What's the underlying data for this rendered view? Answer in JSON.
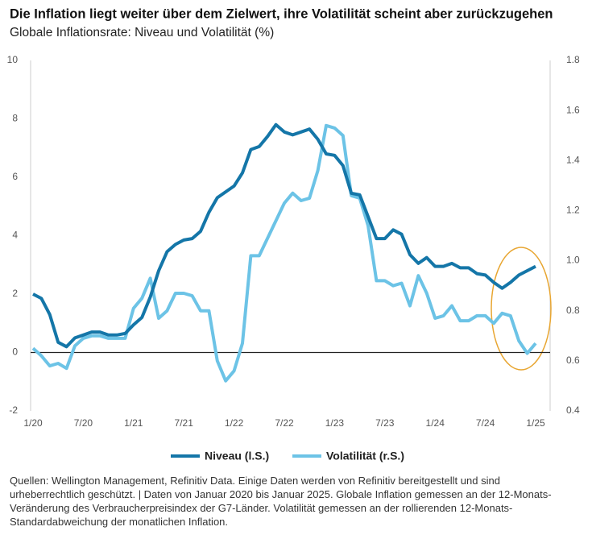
{
  "chart_data": {
    "type": "line",
    "title": "Die Inflation liegt weiter über dem Zielwert, ihre Volatilität scheint aber zurückzugehen",
    "subtitle": "Globale Inflationsrate: Niveau und Volatilität (%)",
    "categories": [
      "1/20",
      null,
      null,
      null,
      null,
      null,
      "7/20",
      null,
      null,
      null,
      null,
      null,
      "1/21",
      null,
      null,
      null,
      null,
      null,
      "7/21",
      null,
      null,
      null,
      null,
      null,
      "1/22",
      null,
      null,
      null,
      null,
      null,
      "7/22",
      null,
      null,
      null,
      null,
      null,
      "1/23",
      null,
      null,
      null,
      null,
      null,
      "7/23",
      null,
      null,
      null,
      null,
      null,
      "1/24",
      null,
      null,
      null,
      null,
      null,
      "7/24",
      null,
      null,
      null,
      null,
      null,
      "1/25"
    ],
    "series": [
      {
        "name": "Niveau (l.S.)",
        "color": "#1476a8",
        "values": [
          2.0,
          1.85,
          1.3,
          0.35,
          0.2,
          0.5,
          0.6,
          0.7,
          0.7,
          0.6,
          0.6,
          0.65,
          0.95,
          1.2,
          1.9,
          2.8,
          3.45,
          3.7,
          3.85,
          3.9,
          4.15,
          4.8,
          5.3,
          5.5,
          5.7,
          6.15,
          6.95,
          7.05,
          7.4,
          7.8,
          7.55,
          7.45,
          7.55,
          7.65,
          7.3,
          6.8,
          6.75,
          6.4,
          5.45,
          5.4,
          4.65,
          3.9,
          3.9,
          4.2,
          4.05,
          3.35,
          3.05,
          3.25,
          2.95,
          2.95,
          3.05,
          2.9,
          2.9,
          2.7,
          2.65,
          2.4,
          2.2,
          2.4,
          2.65,
          2.8,
          2.95
        ]
      },
      {
        "name": "Volatilität (r.S.)",
        "color": "#6cc3e6",
        "axis": "y2",
        "values": [
          0.65,
          0.62,
          0.58,
          0.59,
          0.57,
          0.66,
          0.69,
          0.7,
          0.7,
          0.69,
          0.69,
          0.69,
          0.81,
          0.85,
          0.93,
          0.77,
          0.8,
          0.87,
          0.87,
          0.86,
          0.8,
          0.8,
          0.6,
          0.52,
          0.56,
          0.67,
          1.02,
          1.02,
          1.09,
          1.16,
          1.23,
          1.27,
          1.24,
          1.25,
          1.36,
          1.54,
          1.53,
          1.5,
          1.26,
          1.25,
          1.14,
          0.92,
          0.92,
          0.9,
          0.91,
          0.82,
          0.94,
          0.87,
          0.77,
          0.78,
          0.82,
          0.76,
          0.76,
          0.78,
          0.78,
          0.75,
          0.79,
          0.78,
          0.68,
          0.63,
          0.67
        ]
      }
    ],
    "ylim": [
      -2,
      10
    ],
    "yticks": [
      -2,
      0,
      2,
      4,
      6,
      8,
      10
    ],
    "y2lim": [
      0.4,
      1.8
    ],
    "y2ticks": [
      0.4,
      0.6,
      0.8,
      {
        "value": 1,
        "label": "1.0"
      },
      1.2,
      1.4,
      1.6,
      1.8
    ],
    "grid": false,
    "zero_line": true,
    "legend": "bottom",
    "source": "Quellen: Wellington Management, Refinitiv Data. Einige Daten werden von Refinitiv bereitgestellt und sind urheberrechtlich geschützt.  |  Daten von Januar 2020 bis Januar 2025. Globale Inflation gemessen an der 12-Monats-Veränderung des Verbraucherpreisindex der G7-Länder. Volatilität gemessen an der rollierenden 12-Monats-Standardabweichung der monatlichen Inflation."
  }
}
